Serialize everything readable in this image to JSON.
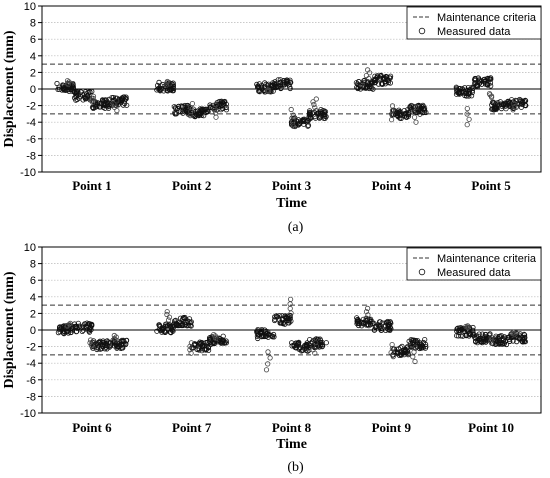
{
  "chart_data": [
    {
      "panel_label": "(a)",
      "type": "scatter",
      "xlabel": "Time",
      "ylabel": "Displacement (mm)",
      "ylim": [
        -10,
        10
      ],
      "yticks": [
        -10,
        -8,
        -6,
        -4,
        -2,
        0,
        2,
        4,
        6,
        8,
        10
      ],
      "grid": true,
      "legend_position": "top-right",
      "maintenance_criteria": [
        3,
        -3
      ],
      "legend": [
        "Maintenance criteria",
        "Measured data"
      ],
      "categories": [
        "Point 1",
        "Point 2",
        "Point 3",
        "Point 4",
        "Point 5"
      ],
      "points": [
        {
          "name": "Point 1",
          "segments": [
            0.2,
            -0.8,
            -1.8,
            -1.5
          ],
          "spikes": [
            1.0,
            -1.6,
            -2.6
          ]
        },
        {
          "name": "Point 2",
          "segments": [
            0.3,
            -2.5,
            -2.8,
            -2.0
          ],
          "spikes": [
            0.9,
            -3.2,
            -3.4
          ]
        },
        {
          "name": "Point 3",
          "segments": [
            0.2,
            0.6,
            -4.0,
            -3.0
          ],
          "spikes": [
            -0.3,
            -4.5,
            -2.2
          ]
        },
        {
          "name": "Point 4",
          "segments": [
            0.5,
            1.1,
            -3.0,
            -2.5
          ],
          "spikes": [
            2.3,
            -3.7,
            -4.0
          ]
        },
        {
          "name": "Point 5",
          "segments": [
            -0.3,
            0.8,
            -2.0,
            -1.8
          ],
          "spikes": [
            -4.3,
            -1.0,
            -2.5
          ]
        }
      ]
    },
    {
      "panel_label": "(b)",
      "type": "scatter",
      "xlabel": "Time",
      "ylabel": "Displacement (mm)",
      "ylim": [
        -10,
        10
      ],
      "yticks": [
        -10,
        -8,
        -6,
        -4,
        -2,
        0,
        2,
        4,
        6,
        8,
        10
      ],
      "grid": true,
      "legend_position": "top-right",
      "maintenance_criteria": [
        3,
        -3
      ],
      "legend": [
        "Maintenance criteria",
        "Measured data"
      ],
      "categories": [
        "Point 6",
        "Point 7",
        "Point 8",
        "Point 9",
        "Point 10"
      ],
      "points": [
        {
          "name": "Point 6",
          "segments": [
            0.0,
            0.3,
            -1.8,
            -1.7
          ],
          "spikes": [
            0.8,
            -2.2,
            -1.2
          ]
        },
        {
          "name": "Point 7",
          "segments": [
            0.2,
            1.0,
            -2.0,
            -1.2
          ],
          "spikes": [
            2.2,
            -2.8,
            -1.0
          ]
        },
        {
          "name": "Point 8",
          "segments": [
            -0.5,
            1.2,
            -2.0,
            -1.6
          ],
          "spikes": [
            -4.8,
            3.7,
            -2.8
          ]
        },
        {
          "name": "Point 9",
          "segments": [
            1.0,
            0.5,
            -2.5,
            -1.7
          ],
          "spikes": [
            2.6,
            -3.2,
            -3.8
          ]
        },
        {
          "name": "Point 10",
          "segments": [
            -0.2,
            -1.0,
            -1.2,
            -0.9
          ],
          "spikes": [
            0.5,
            -1.6,
            -0.5
          ]
        }
      ]
    }
  ]
}
